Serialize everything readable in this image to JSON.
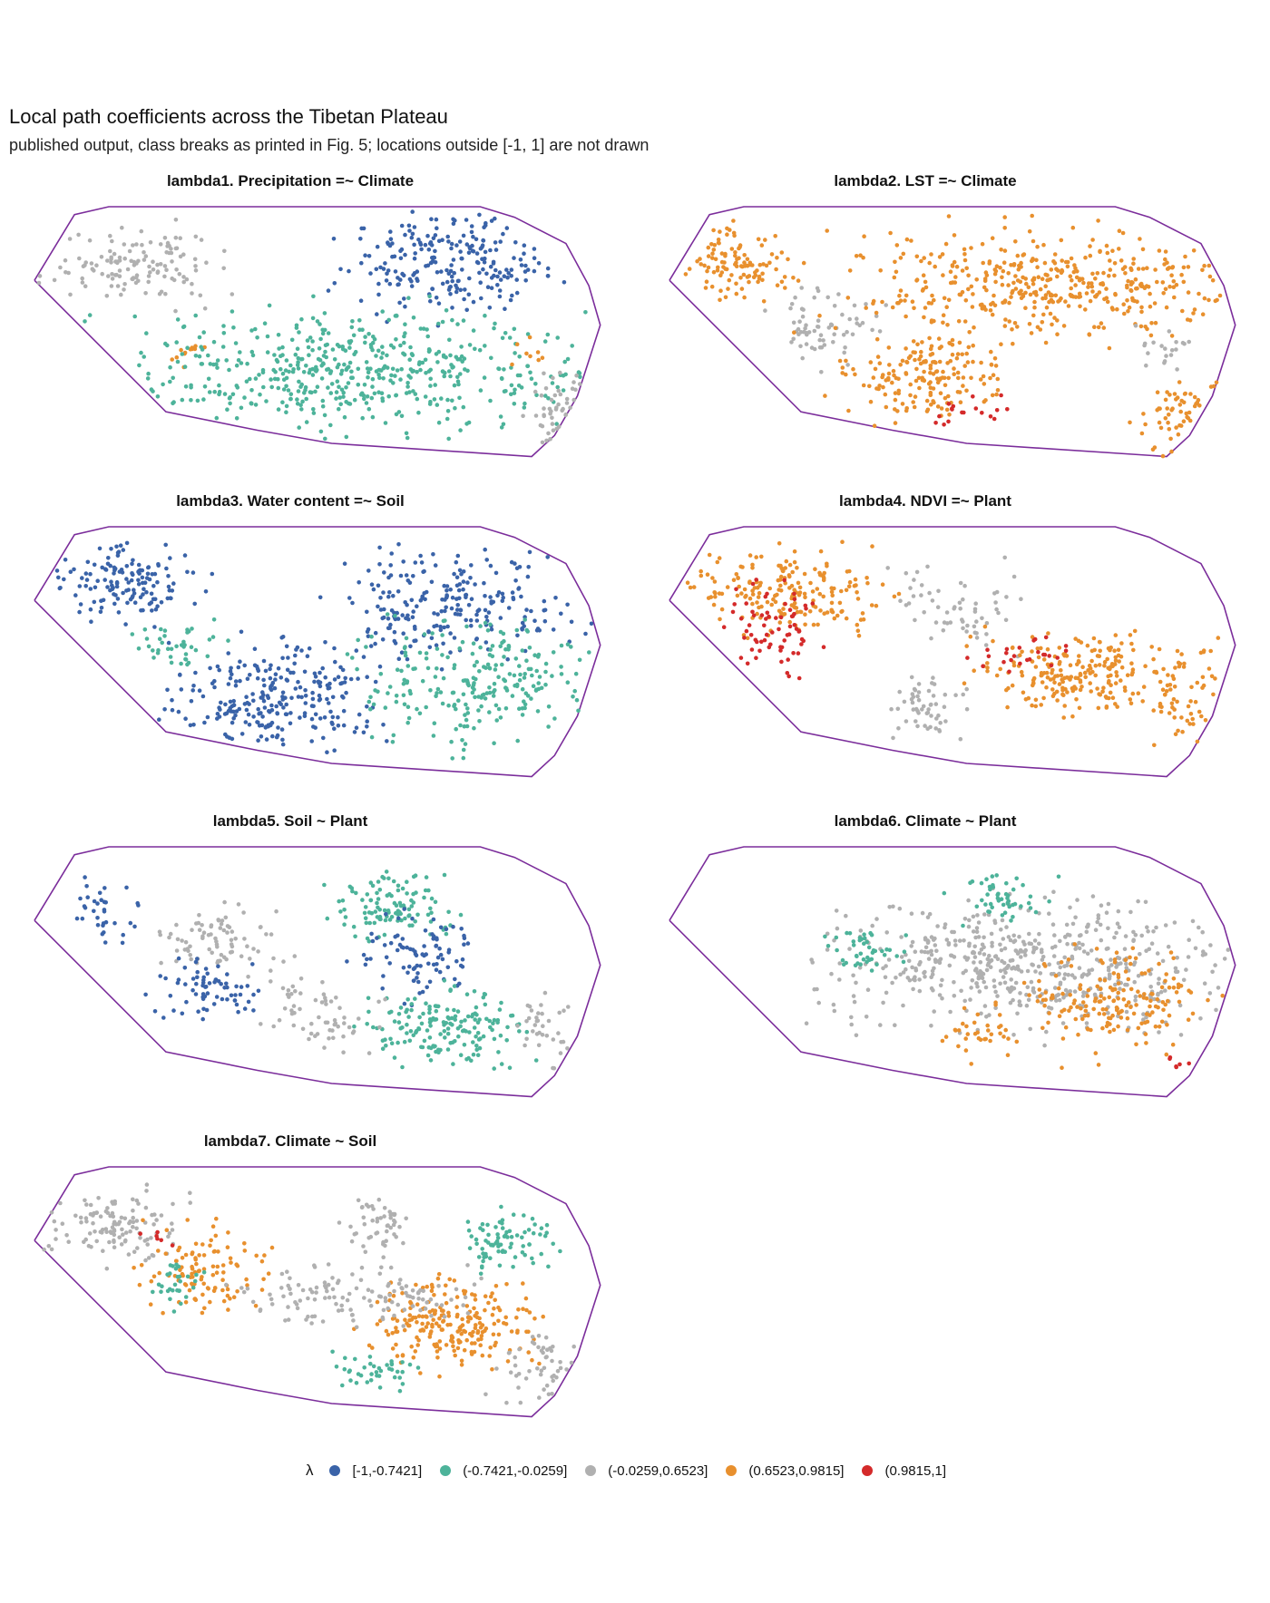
{
  "title": "Local path coefficients across the Tibetan Plateau",
  "subtitle": "published output, class breaks as printed in Fig. 5; locations outside [-1, 1] are not drawn",
  "legend": {
    "symbol": "λ",
    "classes": [
      {
        "label": "[-1,-0.7421]",
        "color": "#3a63a8"
      },
      {
        "label": "(-0.7421,-0.0259]",
        "color": "#4db39a"
      },
      {
        "label": "(-0.0259,0.6523]",
        "color": "#b0b0b0"
      },
      {
        "label": "(0.6523,0.9815]",
        "color": "#e8902e"
      },
      {
        "label": "(0.9815,1]",
        "color": "#d42a2a"
      }
    ]
  },
  "outline_color": "#7b2d9b",
  "chart_data": [
    {
      "type": "scatter",
      "title": "lambda1. Precipitation =~ Climate",
      "class_regions": [
        {
          "class": 2,
          "cx": 0.18,
          "cy": 0.22,
          "rx": 0.12,
          "ry": 0.12,
          "n": 130
        },
        {
          "class": 3,
          "cx": 0.27,
          "cy": 0.56,
          "rx": 0.03,
          "ry": 0.04,
          "n": 12
        },
        {
          "class": 0,
          "cx": 0.72,
          "cy": 0.22,
          "rx": 0.16,
          "ry": 0.18,
          "n": 230
        },
        {
          "class": 1,
          "cx": 0.55,
          "cy": 0.62,
          "rx": 0.36,
          "ry": 0.2,
          "n": 520
        },
        {
          "class": 2,
          "cx": 0.93,
          "cy": 0.78,
          "rx": 0.06,
          "ry": 0.14,
          "n": 45
        },
        {
          "class": 3,
          "cx": 0.86,
          "cy": 0.55,
          "rx": 0.03,
          "ry": 0.05,
          "n": 8
        }
      ]
    },
    {
      "type": "scatter",
      "title": "lambda2. LST =~ Climate",
      "class_regions": [
        {
          "class": 3,
          "cx": 0.12,
          "cy": 0.22,
          "rx": 0.08,
          "ry": 0.12,
          "n": 110
        },
        {
          "class": 2,
          "cx": 0.27,
          "cy": 0.45,
          "rx": 0.08,
          "ry": 0.14,
          "n": 70
        },
        {
          "class": 3,
          "cx": 0.67,
          "cy": 0.3,
          "rx": 0.3,
          "ry": 0.18,
          "n": 430
        },
        {
          "class": 3,
          "cx": 0.45,
          "cy": 0.65,
          "rx": 0.12,
          "ry": 0.15,
          "n": 180
        },
        {
          "class": 4,
          "cx": 0.52,
          "cy": 0.78,
          "rx": 0.06,
          "ry": 0.06,
          "n": 18
        },
        {
          "class": 3,
          "cx": 0.9,
          "cy": 0.8,
          "rx": 0.07,
          "ry": 0.13,
          "n": 55
        },
        {
          "class": 2,
          "cx": 0.88,
          "cy": 0.55,
          "rx": 0.05,
          "ry": 0.08,
          "n": 20
        }
      ]
    },
    {
      "type": "scatter",
      "title": "lambda3. Water content =~ Soil",
      "class_regions": [
        {
          "class": 0,
          "cx": 0.15,
          "cy": 0.22,
          "rx": 0.11,
          "ry": 0.13,
          "n": 140
        },
        {
          "class": 1,
          "cx": 0.25,
          "cy": 0.45,
          "rx": 0.07,
          "ry": 0.1,
          "n": 40
        },
        {
          "class": 0,
          "cx": 0.42,
          "cy": 0.65,
          "rx": 0.16,
          "ry": 0.2,
          "n": 260
        },
        {
          "class": 0,
          "cx": 0.72,
          "cy": 0.3,
          "rx": 0.18,
          "ry": 0.18,
          "n": 230
        },
        {
          "class": 1,
          "cx": 0.78,
          "cy": 0.58,
          "rx": 0.17,
          "ry": 0.22,
          "n": 240
        }
      ]
    },
    {
      "type": "scatter",
      "title": "lambda4. NDVI =~ Plant",
      "class_regions": [
        {
          "class": 3,
          "cx": 0.22,
          "cy": 0.25,
          "rx": 0.17,
          "ry": 0.15,
          "n": 200
        },
        {
          "class": 4,
          "cx": 0.18,
          "cy": 0.38,
          "rx": 0.07,
          "ry": 0.16,
          "n": 70
        },
        {
          "class": 2,
          "cx": 0.5,
          "cy": 0.3,
          "rx": 0.12,
          "ry": 0.14,
          "n": 60
        },
        {
          "class": 2,
          "cx": 0.45,
          "cy": 0.68,
          "rx": 0.06,
          "ry": 0.12,
          "n": 55
        },
        {
          "class": 3,
          "cx": 0.7,
          "cy": 0.55,
          "rx": 0.15,
          "ry": 0.13,
          "n": 220
        },
        {
          "class": 4,
          "cx": 0.62,
          "cy": 0.48,
          "rx": 0.1,
          "ry": 0.06,
          "n": 25
        },
        {
          "class": 3,
          "cx": 0.9,
          "cy": 0.65,
          "rx": 0.06,
          "ry": 0.2,
          "n": 60
        }
      ]
    },
    {
      "type": "scatter",
      "title": "lambda5. Soil ~ Plant",
      "class_regions": [
        {
          "class": 0,
          "cx": 0.12,
          "cy": 0.25,
          "rx": 0.06,
          "ry": 0.12,
          "n": 35
        },
        {
          "class": 2,
          "cx": 0.33,
          "cy": 0.36,
          "rx": 0.1,
          "ry": 0.12,
          "n": 80
        },
        {
          "class": 0,
          "cx": 0.3,
          "cy": 0.55,
          "rx": 0.09,
          "ry": 0.1,
          "n": 70
        },
        {
          "class": 1,
          "cx": 0.63,
          "cy": 0.22,
          "rx": 0.09,
          "ry": 0.12,
          "n": 110
        },
        {
          "class": 0,
          "cx": 0.68,
          "cy": 0.42,
          "rx": 0.1,
          "ry": 0.15,
          "n": 90
        },
        {
          "class": 1,
          "cx": 0.72,
          "cy": 0.68,
          "rx": 0.14,
          "ry": 0.13,
          "n": 170
        },
        {
          "class": 2,
          "cx": 0.5,
          "cy": 0.65,
          "rx": 0.1,
          "ry": 0.12,
          "n": 60
        },
        {
          "class": 2,
          "cx": 0.9,
          "cy": 0.7,
          "rx": 0.06,
          "ry": 0.14,
          "n": 35
        }
      ]
    },
    {
      "type": "scatter",
      "title": "lambda6. Climate ~ Plant",
      "class_regions": [
        {
          "class": 2,
          "cx": 0.62,
          "cy": 0.45,
          "rx": 0.3,
          "ry": 0.22,
          "n": 560
        },
        {
          "class": 1,
          "cx": 0.35,
          "cy": 0.4,
          "rx": 0.07,
          "ry": 0.08,
          "n": 45
        },
        {
          "class": 1,
          "cx": 0.58,
          "cy": 0.2,
          "rx": 0.08,
          "ry": 0.08,
          "n": 50
        },
        {
          "class": 3,
          "cx": 0.78,
          "cy": 0.58,
          "rx": 0.14,
          "ry": 0.18,
          "n": 180
        },
        {
          "class": 3,
          "cx": 0.55,
          "cy": 0.7,
          "rx": 0.06,
          "ry": 0.1,
          "n": 35
        },
        {
          "class": 4,
          "cx": 0.89,
          "cy": 0.82,
          "rx": 0.02,
          "ry": 0.03,
          "n": 6
        }
      ]
    },
    {
      "type": "scatter",
      "title": "lambda7. Climate ~ Soil",
      "class_regions": [
        {
          "class": 2,
          "cx": 0.14,
          "cy": 0.22,
          "rx": 0.1,
          "ry": 0.12,
          "n": 120
        },
        {
          "class": 3,
          "cx": 0.3,
          "cy": 0.4,
          "rx": 0.1,
          "ry": 0.15,
          "n": 110
        },
        {
          "class": 1,
          "cx": 0.25,
          "cy": 0.45,
          "rx": 0.04,
          "ry": 0.08,
          "n": 30
        },
        {
          "class": 3,
          "cx": 0.73,
          "cy": 0.6,
          "rx": 0.13,
          "ry": 0.15,
          "n": 230
        },
        {
          "class": 2,
          "cx": 0.6,
          "cy": 0.22,
          "rx": 0.05,
          "ry": 0.1,
          "n": 50
        },
        {
          "class": 1,
          "cx": 0.83,
          "cy": 0.28,
          "rx": 0.08,
          "ry": 0.1,
          "n": 80
        },
        {
          "class": 2,
          "cx": 0.55,
          "cy": 0.5,
          "rx": 0.2,
          "ry": 0.1,
          "n": 130
        },
        {
          "class": 1,
          "cx": 0.6,
          "cy": 0.78,
          "rx": 0.07,
          "ry": 0.08,
          "n": 40
        },
        {
          "class": 2,
          "cx": 0.88,
          "cy": 0.78,
          "rx": 0.06,
          "ry": 0.12,
          "n": 50
        },
        {
          "class": 4,
          "cx": 0.22,
          "cy": 0.27,
          "rx": 0.03,
          "ry": 0.03,
          "n": 6
        }
      ]
    }
  ]
}
